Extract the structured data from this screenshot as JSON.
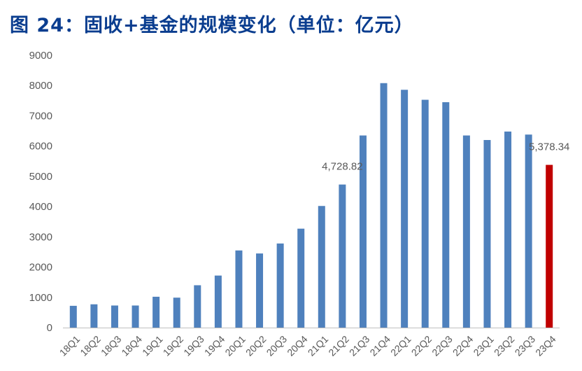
{
  "title": "图 24：固收+基金的规模变化（单位：亿元）",
  "colors": {
    "title": "#0a3d8f",
    "bar": "#4f81bd",
    "highlight": "#c00000",
    "axis": "#bfbfbf",
    "text": "#595959"
  },
  "chart_data": {
    "type": "bar",
    "title": "图 24：固收+基金的规模变化（单位：亿元）",
    "xlabel": "",
    "ylabel": "",
    "ylim": [
      0,
      9000
    ],
    "yticks": [
      "0",
      "1000",
      "2000",
      "3000",
      "4000",
      "5000",
      "6000",
      "7000",
      "8000",
      "9000"
    ],
    "grid": false,
    "categories": [
      "18Q1",
      "18Q2",
      "18Q3",
      "18Q4",
      "19Q1",
      "19Q2",
      "19Q3",
      "19Q4",
      "20Q1",
      "20Q2",
      "20Q3",
      "20Q4",
      "21Q1",
      "21Q2",
      "21Q3",
      "21Q4",
      "22Q1",
      "22Q2",
      "22Q3",
      "22Q4",
      "23Q1",
      "23Q2",
      "23Q3",
      "23Q4"
    ],
    "values": [
      720,
      770,
      730,
      730,
      1020,
      990,
      1400,
      1720,
      2550,
      2450,
      2780,
      3270,
      4020,
      4728.82,
      6350,
      8080,
      7860,
      7530,
      7450,
      6350,
      6200,
      6480,
      6380,
      5378.34
    ],
    "highlight_index": 23,
    "data_labels": [
      {
        "index": 13,
        "text": "4,728.82"
      },
      {
        "index": 23,
        "text": "5,378.34"
      }
    ]
  }
}
